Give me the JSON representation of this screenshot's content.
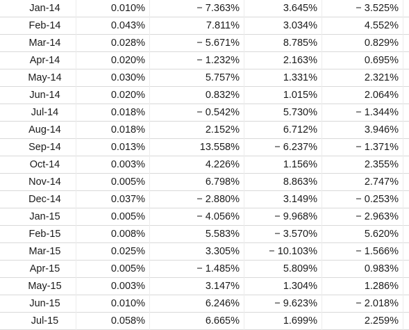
{
  "rows": [
    {
      "date": "Jan-14",
      "rf": "0.010%",
      "a": "− 7.363%",
      "b": "3.645%",
      "c": "− 3.525%"
    },
    {
      "date": "Feb-14",
      "rf": "0.043%",
      "a": "7.811%",
      "b": "3.034%",
      "c": "4.552%"
    },
    {
      "date": "Mar-14",
      "rf": "0.028%",
      "a": "− 5.671%",
      "b": "8.785%",
      "c": "0.829%"
    },
    {
      "date": "Apr-14",
      "rf": "0.020%",
      "a": "− 1.232%",
      "b": "2.163%",
      "c": "0.695%"
    },
    {
      "date": "May-14",
      "rf": "0.030%",
      "a": "5.757%",
      "b": "1.331%",
      "c": "2.321%"
    },
    {
      "date": "Jun-14",
      "rf": "0.020%",
      "a": "0.832%",
      "b": "1.015%",
      "c": "2.064%"
    },
    {
      "date": "Jul-14",
      "rf": "0.018%",
      "a": "− 0.542%",
      "b": "5.730%",
      "c": "− 1.344%"
    },
    {
      "date": "Aug-14",
      "rf": "0.018%",
      "a": "2.152%",
      "b": "6.712%",
      "c": "3.946%"
    },
    {
      "date": "Sep-14",
      "rf": "0.013%",
      "a": "13.558%",
      "b": "− 6.237%",
      "c": "− 1.371%"
    },
    {
      "date": "Oct-14",
      "rf": "0.003%",
      "a": "4.226%",
      "b": "1.156%",
      "c": "2.355%"
    },
    {
      "date": "Nov-14",
      "rf": "0.005%",
      "a": "6.798%",
      "b": "8.863%",
      "c": "2.747%"
    },
    {
      "date": "Dec-14",
      "rf": "0.037%",
      "a": "− 2.880%",
      "b": "3.149%",
      "c": "− 0.253%"
    },
    {
      "date": "Jan-15",
      "rf": "0.005%",
      "a": "− 4.056%",
      "b": "− 9.968%",
      "c": "− 2.963%"
    },
    {
      "date": "Feb-15",
      "rf": "0.008%",
      "a": "5.583%",
      "b": "− 3.570%",
      "c": "5.620%"
    },
    {
      "date": "Mar-15",
      "rf": "0.025%",
      "a": "3.305%",
      "b": "− 10.103%",
      "c": "− 1.566%"
    },
    {
      "date": "Apr-15",
      "rf": "0.005%",
      "a": "− 1.485%",
      "b": "5.809%",
      "c": "0.983%"
    },
    {
      "date": "May-15",
      "rf": "0.003%",
      "a": "3.147%",
      "b": "1.304%",
      "c": "1.286%"
    },
    {
      "date": "Jun-15",
      "rf": "0.010%",
      "a": "6.246%",
      "b": "− 9.623%",
      "c": "− 2.018%"
    },
    {
      "date": "Jul-15",
      "rf": "0.058%",
      "a": "6.665%",
      "b": "1.699%",
      "c": "2.259%"
    }
  ]
}
